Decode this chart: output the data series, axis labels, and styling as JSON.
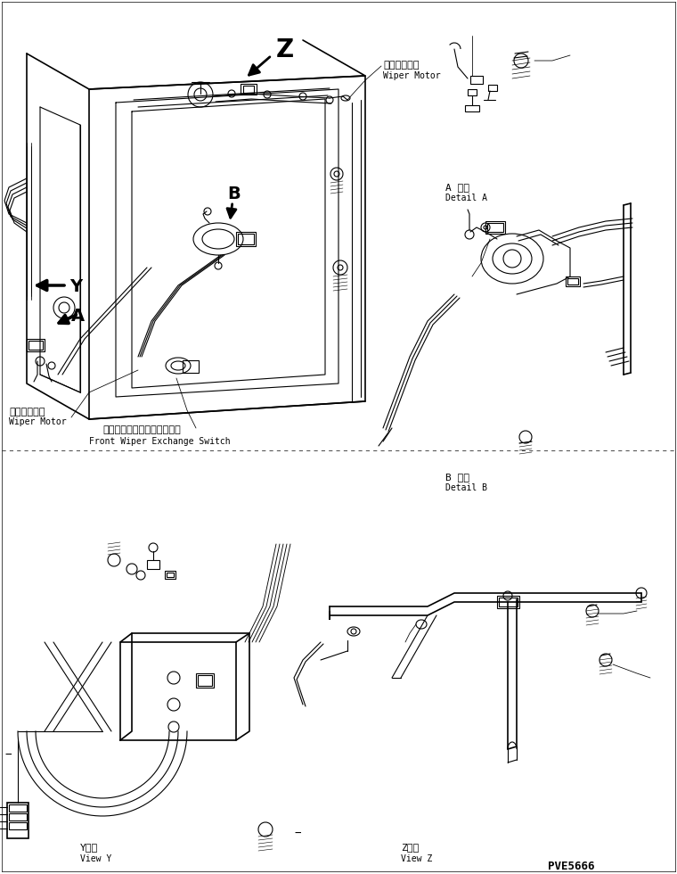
{
  "bg_color": "#ffffff",
  "line_color": "#000000",
  "labels": {
    "wiper_motor_jp_top": "ワイパモータ",
    "wiper_motor_en_top": "Wiper Motor",
    "detail_a_jp": "A 詳細",
    "detail_a_en": "Detail A",
    "detail_b_jp": "B 詳細",
    "detail_b_en": "Detail B",
    "wiper_motor_jp_bot": "ワイパモータ",
    "wiper_motor_en_bot": "Wiper Motor",
    "front_wiper_jp": "フロントワイパ切換スイッチ",
    "front_wiper_en": "Front Wiper Exchange Switch",
    "view_y_jp": "Y　視",
    "view_y_en": "View Y",
    "view_z_jp": "Z　視",
    "view_z_en": "View Z",
    "part_num": "PVE5666",
    "label_z": "Z",
    "label_b": "B",
    "label_y": "Y",
    "label_a": "A"
  },
  "figsize": [
    7.6,
    9.8
  ],
  "dpi": 100
}
